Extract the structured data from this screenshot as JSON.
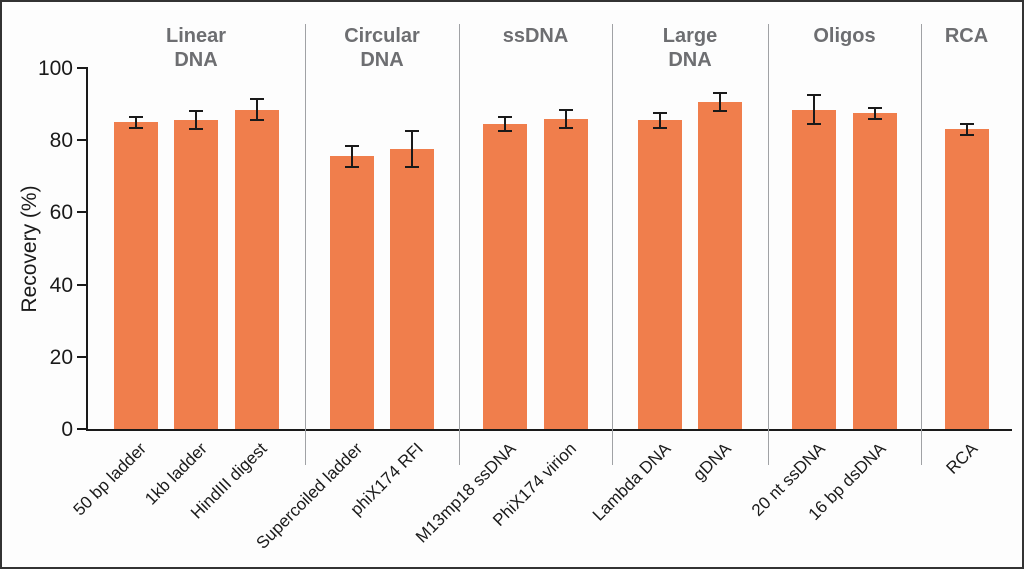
{
  "chart_data": {
    "type": "bar",
    "title": "",
    "ylabel": "Recovery (%)",
    "ylim": [
      0,
      100
    ],
    "yticks": [
      "0",
      "20",
      "40",
      "60",
      "80",
      "100"
    ],
    "grid": "off",
    "legend": "none",
    "bar_color": "#f07e4c",
    "error_bar_color": "#1a1a1a",
    "group_title_color": "#6d6e71",
    "groups": [
      {
        "title_lines": [
          "Linear",
          "DNA"
        ],
        "bars": [
          {
            "label": "50 bp ladder",
            "value": 85,
            "error": 1.5
          },
          {
            "label": "1kb ladder",
            "value": 85.5,
            "error": 2.5
          },
          {
            "label": "HindIII digest",
            "value": 88.5,
            "error": 3
          }
        ]
      },
      {
        "title_lines": [
          "Circular",
          "DNA"
        ],
        "bars": [
          {
            "label": "Supercoiled ladder",
            "value": 75.5,
            "error": 3
          },
          {
            "label": "phiX174 RFI",
            "value": 77.5,
            "error": 5
          }
        ]
      },
      {
        "title_lines": [
          "ssDNA"
        ],
        "bars": [
          {
            "label": "M13mp18 ssDNA",
            "value": 84.5,
            "error": 2
          },
          {
            "label": "PhiX174 virion",
            "value": 86,
            "error": 2.5
          }
        ]
      },
      {
        "title_lines": [
          "Large",
          "DNA"
        ],
        "bars": [
          {
            "label": "Lambda DNA",
            "value": 85.5,
            "error": 2
          },
          {
            "label": "gDNA",
            "value": 90.5,
            "error": 2.5
          }
        ]
      },
      {
        "title_lines": [
          "Oligos"
        ],
        "bars": [
          {
            "label": "20 nt ssDNA",
            "value": 88.5,
            "error": 4
          },
          {
            "label": "16 bp dsDNA",
            "value": 87.5,
            "error": 1.5
          }
        ]
      },
      {
        "title_lines": [
          "RCA"
        ],
        "bars": [
          {
            "label": "RCA",
            "value": 83,
            "error": 1.5
          }
        ]
      }
    ]
  }
}
